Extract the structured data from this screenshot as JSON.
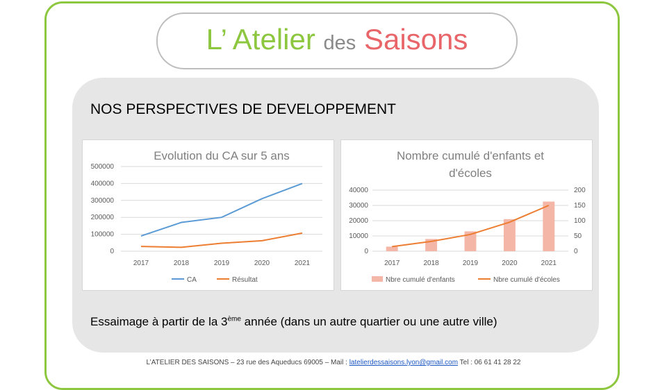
{
  "header": {
    "title_part1": "L’ Atelier",
    "title_part2": "des",
    "title_part3": "Saisons",
    "colors": {
      "green": "#8dc63f",
      "gray": "#8a8a8a",
      "red": "#e8656a"
    }
  },
  "section_heading": "NOS PERSPECTIVES DE DEVELOPPEMENT",
  "essaimage": {
    "before": "Essaimage à partir de la 3",
    "sup": "ème",
    "after": " année (dans un autre quartier ou une autre ville)"
  },
  "footer": {
    "text_before": "L’ATELIER DES SAISONS – 23 rue des Aqueducs 69005 – Mail : ",
    "email": "latelierdessaisons.lyon@gmail.com",
    "text_after": " Tel : 06 61 41 28 22"
  },
  "chart_data": [
    {
      "type": "line",
      "title": "Evolution du CA sur 5 ans",
      "categories": [
        "2017",
        "2018",
        "2019",
        "2020",
        "2021"
      ],
      "series": [
        {
          "name": "CA",
          "values": [
            90000,
            170000,
            200000,
            310000,
            400000
          ],
          "color": "#5b9bd5"
        },
        {
          "name": "Résultat",
          "values": [
            28000,
            23000,
            47000,
            62000,
            107000
          ],
          "color": "#ed7d31"
        }
      ],
      "y_ticks": [
        "0",
        "100000",
        "200000",
        "300000",
        "400000",
        "500000"
      ],
      "ylim": [
        0,
        500000
      ],
      "grid": true,
      "legend": "bottom"
    },
    {
      "type": "bar",
      "title_line1": "Nombre cumulé d'enfants et",
      "title_line2": "d'écoles",
      "categories": [
        "2017",
        "2018",
        "2019",
        "2020",
        "2021"
      ],
      "series": [
        {
          "name": "Nbre cumulé d'enfants",
          "type": "bar",
          "axis": "left",
          "values": [
            3000,
            8000,
            13000,
            21000,
            32500
          ],
          "color": "#f4b6a6"
        },
        {
          "name": "Nbre cumulé d'écoles",
          "type": "line",
          "axis": "right",
          "values": [
            15,
            32,
            55,
            95,
            150
          ],
          "color": "#ed7d31"
        }
      ],
      "y_ticks_left": [
        "0",
        "10000",
        "20000",
        "30000",
        "40000"
      ],
      "y_ticks_right": [
        "0",
        "50",
        "100",
        "150",
        "200"
      ],
      "ylim_left": [
        0,
        40000
      ],
      "ylim_right": [
        0,
        200
      ],
      "grid": true,
      "legend": "bottom"
    }
  ]
}
